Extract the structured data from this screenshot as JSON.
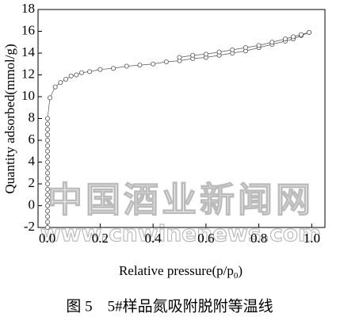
{
  "chart_data": {
    "type": "scatter",
    "xlabel": [
      "Relative pressure(p/p",
      "0",
      ")"
    ],
    "ylabel": "Quantity adsorbed(mmol/g)",
    "caption": "图 5　5#样品氮吸附脱附等温线",
    "watermark": [
      "中国酒业新闻网",
      "www.cnwinenews.com"
    ],
    "xlim": [
      -0.035,
      1.05
    ],
    "ylim": [
      -2,
      18
    ],
    "xticks": [
      {
        "value": 0,
        "label": "0.0"
      },
      {
        "value": 0.2,
        "label": "0.2"
      },
      {
        "value": 0.4,
        "label": "0.4"
      },
      {
        "value": 0.6,
        "label": "0.6"
      },
      {
        "value": 0.8,
        "label": "0.8"
      },
      {
        "value": 1,
        "label": "1.0"
      }
    ],
    "yticks": [
      -2,
      0,
      2,
      4,
      6,
      8,
      10,
      12,
      14,
      16,
      18
    ],
    "series": [
      {
        "color": "#555555",
        "x": [
          0.001,
          0.001,
          0.001,
          0.001,
          0.001,
          0.001,
          0.001,
          0.001,
          0.001,
          0.001,
          0.001,
          0.001,
          0.001,
          0.001,
          0.001,
          0.001,
          0.001,
          0.001,
          0.001,
          0.001,
          0.001,
          0.01,
          0.03,
          0.05,
          0.07,
          0.09,
          0.11,
          0.13,
          0.16,
          0.2,
          0.25,
          0.3,
          0.35,
          0.4,
          0.45,
          0.5,
          0.55,
          0.6,
          0.65,
          0.7,
          0.75,
          0.8,
          0.85,
          0.9,
          0.93,
          0.96,
          0.99
        ],
        "y": [
          -2,
          -1.5,
          -1,
          -0.5,
          0,
          0.5,
          1,
          1.5,
          2,
          2.5,
          3,
          3.5,
          4,
          4.5,
          5,
          5.5,
          6,
          6.5,
          7,
          7.5,
          8,
          9.9,
          10.9,
          11.3,
          11.6,
          11.9,
          12.0,
          12.2,
          12.3,
          12.5,
          12.6,
          12.8,
          12.9,
          13.0,
          13.2,
          13.3,
          13.5,
          13.6,
          13.8,
          14.0,
          14.2,
          14.5,
          14.8,
          15.1,
          15.3,
          15.6,
          15.9
        ]
      },
      {
        "color": "#555555",
        "x": [
          0.99,
          0.96,
          0.93,
          0.9,
          0.85,
          0.8,
          0.75,
          0.7,
          0.65,
          0.6,
          0.55,
          0.5
        ],
        "y": [
          15.9,
          15.7,
          15.5,
          15.3,
          15.0,
          14.7,
          14.5,
          14.3,
          14.1,
          13.9,
          13.8,
          13.6
        ]
      }
    ]
  }
}
